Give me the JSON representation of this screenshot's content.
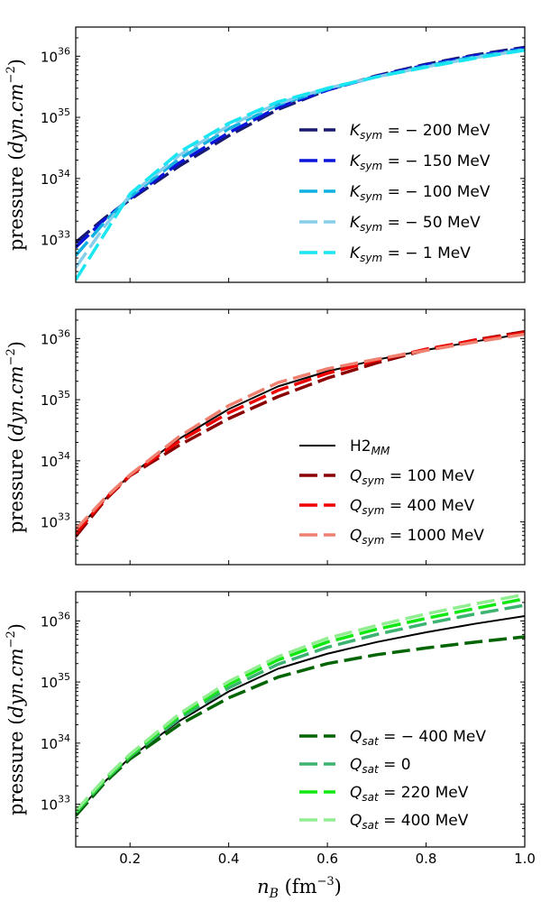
{
  "figure": {
    "xlabel": "n_B (fm^-3)",
    "xlabel_parts": {
      "var": "n",
      "sub": "B",
      "unit": " (fm",
      "exp": "−3",
      "close": ")"
    },
    "ylabel": "pressure (dyn.cm^-2)",
    "ylabel_parts": {
      "word": "pressure (",
      "unit": "dyn.cm",
      "exp": "−2",
      "close": ")"
    }
  },
  "chart_data": [
    {
      "type": "line",
      "name": "panel-ksym",
      "title": "",
      "xlabel": "",
      "ylabel": "pressure (dyn.cm^-2)",
      "yscale": "log",
      "xlim": [
        0.09,
        1.0
      ],
      "ylim": [
        2e+32,
        3e+36
      ],
      "xticks": [
        0.2,
        0.4,
        0.6,
        0.8,
        1.0
      ],
      "show_xtick_labels": false,
      "yticks": [
        {
          "base": "10",
          "exp": "33",
          "value": 1e+33
        },
        {
          "base": "10",
          "exp": "34",
          "value": 1e+34
        },
        {
          "base": "10",
          "exp": "35",
          "value": 1e+35
        },
        {
          "base": "10",
          "exp": "36",
          "value": 1e+36
        }
      ],
      "legend_position": "lower-right",
      "series": [
        {
          "name": "K_sym = −200 MeV",
          "label": {
            "sym": "K",
            "sub": "sym",
            "rest": " = − 200 MeV"
          },
          "color": "#191970",
          "dash": "long",
          "x": [
            0.09,
            0.15,
            0.2,
            0.3,
            0.4,
            0.5,
            0.6,
            0.7,
            0.8,
            0.9,
            1.0
          ],
          "y": [
            9e+32,
            2.3e+33,
            4.5e+33,
            1.6e+34,
            5e+34,
            1.35e+35,
            2.8e+35,
            4.8e+35,
            7.4e+35,
            1.05e+36,
            1.4e+36
          ]
        },
        {
          "name": "K_sym = −150 MeV",
          "label": {
            "sym": "K",
            "sub": "sym",
            "rest": " = − 150 MeV"
          },
          "color": "#0a14d8",
          "dash": "long",
          "x": [
            0.09,
            0.15,
            0.2,
            0.3,
            0.4,
            0.5,
            0.6,
            0.7,
            0.8,
            0.9,
            1.0
          ],
          "y": [
            7.5e+32,
            2.2e+33,
            4.7e+33,
            1.8e+34,
            5.6e+34,
            1.45e+35,
            2.8e+35,
            4.7e+35,
            7.2e+35,
            1.02e+36,
            1.35e+36
          ]
        },
        {
          "name": "K_sym = −100 MeV",
          "label": {
            "sym": "K",
            "sub": "sym",
            "rest": " = − 100 MeV"
          },
          "color": "#10b0e0",
          "dash": "long",
          "x": [
            0.09,
            0.15,
            0.2,
            0.3,
            0.4,
            0.5,
            0.6,
            0.7,
            0.8,
            0.9,
            1.0
          ],
          "y": [
            5.5e+32,
            2e+33,
            5e+33,
            2.1e+34,
            6.5e+34,
            1.6e+35,
            2.9e+35,
            4.6e+35,
            6.9e+35,
            9.8e+35,
            1.3e+36
          ]
        },
        {
          "name": "K_sym = −50 MeV",
          "label": {
            "sym": "K",
            "sub": "sym",
            "rest": " = − 50 MeV"
          },
          "color": "#87ceeb",
          "dash": "long",
          "x": [
            0.09,
            0.15,
            0.2,
            0.3,
            0.4,
            0.5,
            0.6,
            0.7,
            0.8,
            0.9,
            1.0
          ],
          "y": [
            3.5e+32,
            1.7e+33,
            5.3e+33,
            2.4e+34,
            7.3e+34,
            1.7e+35,
            3e+35,
            4.6e+35,
            6.7e+35,
            9.5e+35,
            1.27e+36
          ]
        },
        {
          "name": "K_sym = −1 MeV",
          "label": {
            "sym": "K",
            "sub": "sym",
            "rest": " = − 1 MeV"
          },
          "color": "#1ae6f2",
          "dash": "long",
          "x": [
            0.09,
            0.15,
            0.2,
            0.3,
            0.4,
            0.5,
            0.6,
            0.7,
            0.8,
            0.9,
            1.0
          ],
          "y": [
            2.2e+32,
            1.3e+33,
            5.6e+33,
            2.7e+34,
            8e+34,
            1.8e+35,
            3e+35,
            4.6e+35,
            6.6e+35,
            9.3e+35,
            1.25e+36
          ]
        }
      ]
    },
    {
      "type": "line",
      "name": "panel-qsym",
      "title": "",
      "xlabel": "",
      "ylabel": "pressure (dyn.cm^-2)",
      "yscale": "log",
      "xlim": [
        0.09,
        1.0
      ],
      "ylim": [
        2e+32,
        3e+36
      ],
      "xticks": [
        0.2,
        0.4,
        0.6,
        0.8,
        1.0
      ],
      "show_xtick_labels": false,
      "yticks": [
        {
          "base": "10",
          "exp": "33",
          "value": 1e+33
        },
        {
          "base": "10",
          "exp": "34",
          "value": 1e+34
        },
        {
          "base": "10",
          "exp": "35",
          "value": 1e+35
        },
        {
          "base": "10",
          "exp": "36",
          "value": 1e+36
        }
      ],
      "legend_position": "lower-right",
      "series": [
        {
          "name": "H2_MM",
          "label": {
            "sym": "H2",
            "sub": "MM",
            "rest": ""
          },
          "color": "#000000",
          "dash": "solid",
          "x": [
            0.09,
            0.15,
            0.2,
            0.3,
            0.4,
            0.5,
            0.6,
            0.7,
            0.8,
            0.9,
            1.0
          ],
          "y": [
            7e+32,
            2.4e+33,
            5.8e+33,
            2.3e+34,
            7e+34,
            1.65e+35,
            2.9e+35,
            4.5e+35,
            6.5e+35,
            9e+35,
            1.2e+36
          ]
        },
        {
          "name": "Q_sym = 100 MeV",
          "label": {
            "sym": "Q",
            "sub": "sym",
            "rest": " = 100 MeV"
          },
          "color": "#8b0000",
          "dash": "long",
          "x": [
            0.09,
            0.15,
            0.2,
            0.3,
            0.4,
            0.5,
            0.6,
            0.7,
            0.8,
            0.9,
            1.0
          ],
          "y": [
            5.8e+32,
            2.3e+33,
            5.7e+33,
            1.8e+34,
            4.9e+34,
            1.12e+35,
            2.25e+35,
            4e+35,
            6.5e+35,
            9.5e+35,
            1.3e+36
          ]
        },
        {
          "name": "Q_sym = 400 MeV",
          "label": {
            "sym": "Q",
            "sub": "sym",
            "rest": " = 400 MeV"
          },
          "color": "#ee0000",
          "dash": "long",
          "x": [
            0.09,
            0.15,
            0.2,
            0.3,
            0.4,
            0.5,
            0.6,
            0.7,
            0.8,
            0.9,
            1.0
          ],
          "y": [
            6.5e+32,
            2.4e+33,
            5.8e+33,
            2.1e+34,
            6.1e+34,
            1.42e+35,
            2.7e+35,
            4.4e+35,
            6.7e+35,
            9.4e+35,
            1.25e+36
          ]
        },
        {
          "name": "Q_sym = 1000 MeV",
          "label": {
            "sym": "Q",
            "sub": "sym",
            "rest": " = 1000 MeV"
          },
          "color": "#f08070",
          "dash": "long",
          "x": [
            0.09,
            0.15,
            0.2,
            0.3,
            0.4,
            0.5,
            0.6,
            0.7,
            0.8,
            0.9,
            1.0
          ],
          "y": [
            7.5e+32,
            2.5e+33,
            5.9e+33,
            2.5e+34,
            8e+34,
            1.9e+35,
            3.2e+35,
            4.6e+35,
            6.4e+35,
            8.8e+35,
            1.18e+36
          ]
        }
      ]
    },
    {
      "type": "line",
      "name": "panel-qsat",
      "title": "",
      "xlabel": "n_B (fm^-3)",
      "ylabel": "pressure (dyn.cm^-2)",
      "yscale": "log",
      "xlim": [
        0.09,
        1.0
      ],
      "ylim": [
        2e+32,
        3e+36
      ],
      "xticks": [
        0.2,
        0.4,
        0.6,
        0.8,
        1.0
      ],
      "xtick_labels": [
        "0.2",
        "0.4",
        "0.6",
        "0.8",
        "1.0"
      ],
      "show_xtick_labels": true,
      "yticks": [
        {
          "base": "10",
          "exp": "33",
          "value": 1e+33
        },
        {
          "base": "10",
          "exp": "34",
          "value": 1e+34
        },
        {
          "base": "10",
          "exp": "35",
          "value": 1e+35
        },
        {
          "base": "10",
          "exp": "36",
          "value": 1e+36
        }
      ],
      "legend_position": "lower-right",
      "series": [
        {
          "name": "H2_MM",
          "label": null,
          "color": "#000000",
          "dash": "solid",
          "x": [
            0.09,
            0.15,
            0.2,
            0.3,
            0.4,
            0.5,
            0.6,
            0.7,
            0.8,
            0.9,
            1.0
          ],
          "y": [
            7e+32,
            2.4e+33,
            5.8e+33,
            2.3e+34,
            7e+34,
            1.65e+35,
            2.9e+35,
            4.5e+35,
            6.5e+35,
            9e+35,
            1.2e+36
          ]
        },
        {
          "name": "Q_sat = −400 MeV",
          "label": {
            "sym": "Q",
            "sub": "sat",
            "rest": " = − 400 MeV"
          },
          "color": "#006400",
          "dash": "long",
          "x": [
            0.09,
            0.15,
            0.2,
            0.3,
            0.4,
            0.5,
            0.6,
            0.7,
            0.8,
            0.9,
            1.0
          ],
          "y": [
            6.5e+32,
            2.3e+33,
            5.5e+33,
            2e+34,
            5.5e+34,
            1.2e+35,
            2e+35,
            2.8e+35,
            3.6e+35,
            4.5e+35,
            5.5e+35
          ]
        },
        {
          "name": "Q_sat = 0",
          "label": {
            "sym": "Q",
            "sub": "sat",
            "rest": " = 0"
          },
          "color": "#3cb371",
          "dash": "long",
          "x": [
            0.09,
            0.15,
            0.2,
            0.3,
            0.4,
            0.5,
            0.6,
            0.7,
            0.8,
            0.9,
            1.0
          ],
          "y": [
            7.2e+32,
            2.5e+33,
            6e+33,
            2.5e+34,
            8e+34,
            1.95e+35,
            3.7e+35,
            6e+35,
            9e+35,
            1.3e+36,
            1.8e+36
          ]
        },
        {
          "name": "Q_sat = 220 MeV",
          "label": {
            "sym": "Q",
            "sub": "sat",
            "rest": " = 220 MeV"
          },
          "color": "#11e711",
          "dash": "long",
          "x": [
            0.09,
            0.15,
            0.2,
            0.3,
            0.4,
            0.5,
            0.6,
            0.7,
            0.8,
            0.9,
            1.0
          ],
          "y": [
            7.5e+32,
            2.6e+33,
            6.3e+33,
            2.8e+34,
            9.2e+34,
            2.3e+35,
            4.5e+35,
            7.3e+35,
            1.1e+36,
            1.6e+36,
            2.3e+36
          ]
        },
        {
          "name": "Q_sat = 400 MeV",
          "label": {
            "sym": "Q",
            "sub": "sat",
            "rest": " = 400 MeV"
          },
          "color": "#90ee90",
          "dash": "long",
          "x": [
            0.09,
            0.15,
            0.2,
            0.3,
            0.4,
            0.5,
            0.6,
            0.7,
            0.8,
            0.9,
            1.0
          ],
          "y": [
            7.8e+32,
            2.7e+33,
            6.6e+33,
            3e+34,
            1.02e+35,
            2.6e+35,
            5.2e+35,
            8.4e+35,
            1.3e+36,
            1.9e+36,
            2.7e+36
          ]
        }
      ]
    }
  ]
}
